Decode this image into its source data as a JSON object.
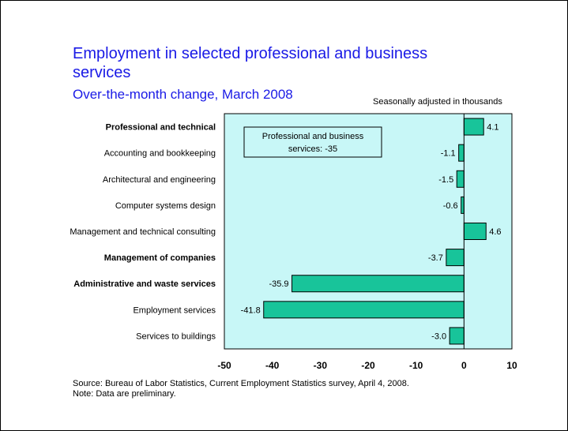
{
  "chart_data": {
    "type": "bar",
    "orientation": "horizontal",
    "title": "Employment in selected professional and business services",
    "subtitle": "Over-the-month change, March 2008",
    "units_note": "Seasonally adjusted in thousands",
    "categories": [
      "Professional and technical",
      "Accounting and bookkeeping",
      "Architectural and engineering",
      "Computer systems design",
      "Management and technical consulting",
      "Management of companies",
      "Administrative and waste services",
      "Employment services",
      "Services to buildings"
    ],
    "bold_categories": [
      "Professional and technical",
      "Management of companies",
      "Administrative and waste services"
    ],
    "values": [
      4.1,
      -1.1,
      -1.5,
      -0.6,
      4.6,
      -3.7,
      -35.9,
      -41.8,
      -3.0
    ],
    "value_labels": [
      "4.1",
      "-1.1",
      "-1.5",
      "-0.6",
      "4.6",
      "-3.7",
      "-35.9",
      "-41.8",
      "-3.0"
    ],
    "xlim": [
      -50,
      10
    ],
    "x_ticks": [
      "-50",
      "-40",
      "-30",
      "-20",
      "-10",
      "0",
      "10"
    ],
    "annotation": {
      "line1": "Professional and business",
      "line2": "services: -35"
    },
    "grid": false,
    "colors": {
      "bar_fill": "#18c49a",
      "plot_background": "#c8f7f7",
      "title": "#1a1ae6"
    }
  },
  "footer": {
    "source": "Source:  Bureau of Labor Statistics, Current Employment Statistics survey, April 4, 2008.",
    "note": "Note:  Data are preliminary."
  }
}
